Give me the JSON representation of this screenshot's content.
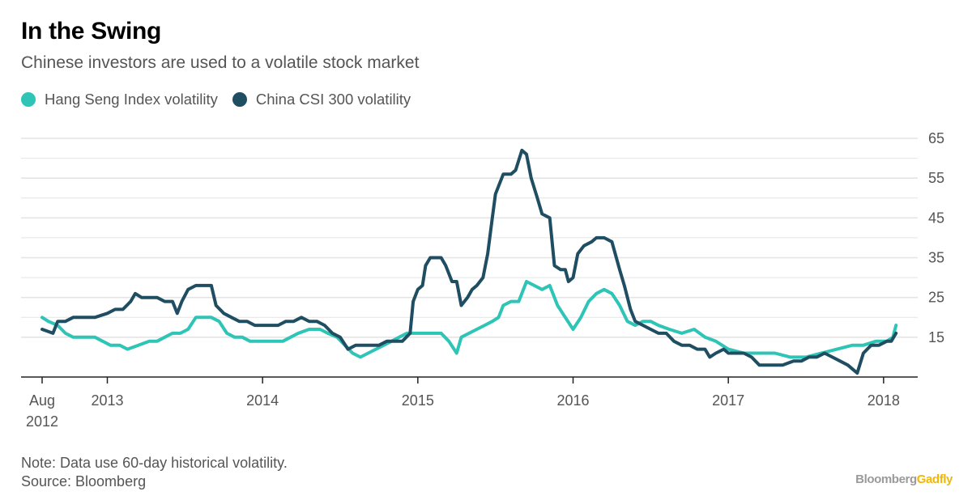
{
  "header": {
    "title": "In the Swing",
    "subtitle": "Chinese investors are used to a volatile stock market"
  },
  "footer": {
    "note": "Note: Data use 60-day historical volatility.",
    "source": "Source: Bloomberg"
  },
  "brand": {
    "part1": "Bloomberg",
    "part2": "Gadfly"
  },
  "colors": {
    "hang_seng": "#2ec4b6",
    "csi300": "#1f4e62",
    "grid": "#e4e4e4",
    "axis": "#222222",
    "tick_text": "#555555"
  },
  "chart_data": {
    "type": "line",
    "title": "In the Swing",
    "xlabel": "",
    "ylabel": "",
    "xlim": [
      2012.58,
      2018.1
    ],
    "ylim": [
      5,
      65
    ],
    "y_ticks": [
      15,
      25,
      35,
      45,
      55,
      65
    ],
    "y_tick_labels": [
      "15",
      "25",
      "35",
      "45",
      "55",
      "65"
    ],
    "minor_grid": [
      20,
      30,
      40,
      50,
      60
    ],
    "x_ticks": [
      {
        "x": 2012.58,
        "line1": "Aug",
        "line2": "2012"
      },
      {
        "x": 2013.0,
        "line1": "2013",
        "line2": ""
      },
      {
        "x": 2014.0,
        "line1": "2014",
        "line2": ""
      },
      {
        "x": 2015.0,
        "line1": "2015",
        "line2": ""
      },
      {
        "x": 2016.0,
        "line1": "2016",
        "line2": ""
      },
      {
        "x": 2017.0,
        "line1": "2017",
        "line2": ""
      },
      {
        "x": 2018.0,
        "line1": "2018",
        "line2": ""
      }
    ],
    "legend_position": "top-left",
    "series": [
      {
        "name": "Hang Seng Index volatility",
        "color": "#2ec4b6",
        "points": [
          [
            2012.58,
            20
          ],
          [
            2012.62,
            19
          ],
          [
            2012.68,
            18
          ],
          [
            2012.73,
            16
          ],
          [
            2012.78,
            15
          ],
          [
            2012.85,
            15
          ],
          [
            2012.92,
            15
          ],
          [
            2012.97,
            14
          ],
          [
            2013.02,
            13
          ],
          [
            2013.08,
            13
          ],
          [
            2013.13,
            12
          ],
          [
            2013.2,
            13
          ],
          [
            2013.27,
            14
          ],
          [
            2013.32,
            14
          ],
          [
            2013.37,
            15
          ],
          [
            2013.42,
            16
          ],
          [
            2013.47,
            16
          ],
          [
            2013.52,
            17
          ],
          [
            2013.57,
            20
          ],
          [
            2013.62,
            20
          ],
          [
            2013.67,
            20
          ],
          [
            2013.72,
            19
          ],
          [
            2013.77,
            16
          ],
          [
            2013.82,
            15
          ],
          [
            2013.87,
            15
          ],
          [
            2013.92,
            14
          ],
          [
            2014.0,
            14
          ],
          [
            2014.08,
            14
          ],
          [
            2014.13,
            14
          ],
          [
            2014.18,
            15
          ],
          [
            2014.23,
            16
          ],
          [
            2014.3,
            17
          ],
          [
            2014.37,
            17
          ],
          [
            2014.42,
            16
          ],
          [
            2014.48,
            15
          ],
          [
            2014.53,
            13
          ],
          [
            2014.58,
            11
          ],
          [
            2014.63,
            10
          ],
          [
            2014.68,
            11
          ],
          [
            2014.73,
            12
          ],
          [
            2014.78,
            13
          ],
          [
            2014.83,
            14
          ],
          [
            2014.88,
            15
          ],
          [
            2014.93,
            16
          ],
          [
            2015.0,
            16
          ],
          [
            2015.05,
            16
          ],
          [
            2015.1,
            16
          ],
          [
            2015.15,
            16
          ],
          [
            2015.2,
            14
          ],
          [
            2015.25,
            11
          ],
          [
            2015.28,
            15
          ],
          [
            2015.33,
            16
          ],
          [
            2015.38,
            17
          ],
          [
            2015.43,
            18
          ],
          [
            2015.48,
            19
          ],
          [
            2015.52,
            20
          ],
          [
            2015.55,
            23
          ],
          [
            2015.6,
            24
          ],
          [
            2015.65,
            24
          ],
          [
            2015.7,
            29
          ],
          [
            2015.75,
            28
          ],
          [
            2015.8,
            27
          ],
          [
            2015.85,
            28
          ],
          [
            2015.9,
            23
          ],
          [
            2015.95,
            20
          ],
          [
            2016.0,
            17
          ],
          [
            2016.05,
            20
          ],
          [
            2016.1,
            24
          ],
          [
            2016.15,
            26
          ],
          [
            2016.2,
            27
          ],
          [
            2016.25,
            26
          ],
          [
            2016.3,
            23
          ],
          [
            2016.35,
            19
          ],
          [
            2016.4,
            18
          ],
          [
            2016.45,
            19
          ],
          [
            2016.5,
            19
          ],
          [
            2016.55,
            18
          ],
          [
            2016.62,
            17
          ],
          [
            2016.7,
            16
          ],
          [
            2016.78,
            17
          ],
          [
            2016.85,
            15
          ],
          [
            2016.92,
            14
          ],
          [
            2017.0,
            12
          ],
          [
            2017.1,
            11
          ],
          [
            2017.2,
            11
          ],
          [
            2017.3,
            11
          ],
          [
            2017.4,
            10
          ],
          [
            2017.5,
            10
          ],
          [
            2017.6,
            11
          ],
          [
            2017.7,
            12
          ],
          [
            2017.8,
            13
          ],
          [
            2017.87,
            13
          ],
          [
            2017.95,
            14
          ],
          [
            2018.02,
            14
          ],
          [
            2018.06,
            15
          ],
          [
            2018.08,
            18
          ]
        ]
      },
      {
        "name": "China CSI 300 volatility",
        "color": "#1f4e62",
        "points": [
          [
            2012.58,
            17
          ],
          [
            2012.65,
            16
          ],
          [
            2012.68,
            19
          ],
          [
            2012.73,
            19
          ],
          [
            2012.78,
            20
          ],
          [
            2012.85,
            20
          ],
          [
            2012.92,
            20
          ],
          [
            2013.0,
            21
          ],
          [
            2013.05,
            22
          ],
          [
            2013.1,
            22
          ],
          [
            2013.15,
            24
          ],
          [
            2013.18,
            26
          ],
          [
            2013.22,
            25
          ],
          [
            2013.27,
            25
          ],
          [
            2013.32,
            25
          ],
          [
            2013.37,
            24
          ],
          [
            2013.42,
            24
          ],
          [
            2013.45,
            21
          ],
          [
            2013.48,
            24
          ],
          [
            2013.52,
            27
          ],
          [
            2013.57,
            28
          ],
          [
            2013.62,
            28
          ],
          [
            2013.67,
            28
          ],
          [
            2013.7,
            23
          ],
          [
            2013.75,
            21
          ],
          [
            2013.8,
            20
          ],
          [
            2013.85,
            19
          ],
          [
            2013.9,
            19
          ],
          [
            2013.95,
            18
          ],
          [
            2014.0,
            18
          ],
          [
            2014.05,
            18
          ],
          [
            2014.1,
            18
          ],
          [
            2014.15,
            19
          ],
          [
            2014.2,
            19
          ],
          [
            2014.25,
            20
          ],
          [
            2014.3,
            19
          ],
          [
            2014.35,
            19
          ],
          [
            2014.4,
            18
          ],
          [
            2014.45,
            16
          ],
          [
            2014.5,
            15
          ],
          [
            2014.55,
            12
          ],
          [
            2014.6,
            13
          ],
          [
            2014.65,
            13
          ],
          [
            2014.7,
            13
          ],
          [
            2014.75,
            13
          ],
          [
            2014.8,
            14
          ],
          [
            2014.85,
            14
          ],
          [
            2014.9,
            14
          ],
          [
            2014.95,
            16
          ],
          [
            2014.97,
            24
          ],
          [
            2015.0,
            27
          ],
          [
            2015.03,
            28
          ],
          [
            2015.05,
            33
          ],
          [
            2015.08,
            35
          ],
          [
            2015.12,
            35
          ],
          [
            2015.15,
            35
          ],
          [
            2015.18,
            33
          ],
          [
            2015.22,
            29
          ],
          [
            2015.25,
            29
          ],
          [
            2015.28,
            23
          ],
          [
            2015.32,
            25
          ],
          [
            2015.35,
            27
          ],
          [
            2015.38,
            28
          ],
          [
            2015.42,
            30
          ],
          [
            2015.45,
            36
          ],
          [
            2015.48,
            45
          ],
          [
            2015.5,
            51
          ],
          [
            2015.55,
            56
          ],
          [
            2015.6,
            56
          ],
          [
            2015.63,
            57
          ],
          [
            2015.67,
            62
          ],
          [
            2015.7,
            61
          ],
          [
            2015.73,
            55
          ],
          [
            2015.77,
            50
          ],
          [
            2015.8,
            46
          ],
          [
            2015.85,
            45
          ],
          [
            2015.88,
            33
          ],
          [
            2015.92,
            32
          ],
          [
            2015.95,
            32
          ],
          [
            2015.97,
            29
          ],
          [
            2016.0,
            30
          ],
          [
            2016.03,
            36
          ],
          [
            2016.07,
            38
          ],
          [
            2016.12,
            39
          ],
          [
            2016.15,
            40
          ],
          [
            2016.2,
            40
          ],
          [
            2016.25,
            39
          ],
          [
            2016.3,
            32
          ],
          [
            2016.33,
            28
          ],
          [
            2016.37,
            22
          ],
          [
            2016.4,
            19
          ],
          [
            2016.45,
            18
          ],
          [
            2016.5,
            17
          ],
          [
            2016.55,
            16
          ],
          [
            2016.6,
            16
          ],
          [
            2016.65,
            14
          ],
          [
            2016.7,
            13
          ],
          [
            2016.75,
            13
          ],
          [
            2016.8,
            12
          ],
          [
            2016.85,
            12
          ],
          [
            2016.88,
            10
          ],
          [
            2016.92,
            11
          ],
          [
            2016.97,
            12
          ],
          [
            2017.0,
            11
          ],
          [
            2017.05,
            11
          ],
          [
            2017.1,
            11
          ],
          [
            2017.15,
            10
          ],
          [
            2017.2,
            8
          ],
          [
            2017.25,
            8
          ],
          [
            2017.3,
            8
          ],
          [
            2017.35,
            8
          ],
          [
            2017.42,
            9
          ],
          [
            2017.47,
            9
          ],
          [
            2017.52,
            10
          ],
          [
            2017.57,
            10
          ],
          [
            2017.62,
            11
          ],
          [
            2017.67,
            10
          ],
          [
            2017.72,
            9
          ],
          [
            2017.77,
            8
          ],
          [
            2017.8,
            7
          ],
          [
            2017.83,
            6
          ],
          [
            2017.87,
            11
          ],
          [
            2017.92,
            13
          ],
          [
            2017.97,
            13
          ],
          [
            2018.02,
            14
          ],
          [
            2018.05,
            14
          ],
          [
            2018.08,
            16
          ]
        ]
      }
    ]
  }
}
